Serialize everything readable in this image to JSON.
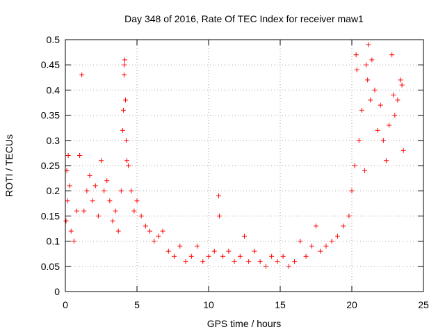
{
  "chart_data": {
    "type": "scatter",
    "title": "Day 348 of 2016, Rate Of TEC Index for receiver maw1",
    "xlabel": "GPS time / hours",
    "ylabel": "ROTI / TECUs",
    "xlim": [
      0,
      25
    ],
    "ylim": [
      0,
      0.5
    ],
    "xticks": [
      0,
      5,
      10,
      15,
      20,
      25
    ],
    "xtick_labels": [
      "0",
      "5",
      "10",
      "15",
      "20",
      "25"
    ],
    "yticks": [
      0,
      0.05,
      0.1,
      0.15,
      0.2,
      0.25,
      0.3,
      0.35,
      0.4,
      0.45,
      0.5
    ],
    "ytick_labels": [
      "0",
      "0.05",
      "0.1",
      "0.15",
      "0.2",
      "0.25",
      "0.3",
      "0.35",
      "0.4",
      "0.45",
      "0.5"
    ],
    "grid": true,
    "marker": "+",
    "color": "#ff0000",
    "series": [
      {
        "name": "ROTI",
        "points": [
          [
            0.1,
            0.24
          ],
          [
            0.2,
            0.27
          ],
          [
            0.3,
            0.21
          ],
          [
            0.15,
            0.18
          ],
          [
            0.05,
            0.14
          ],
          [
            0.4,
            0.12
          ],
          [
            0.6,
            0.1
          ],
          [
            0.8,
            0.16
          ],
          [
            1.0,
            0.27
          ],
          [
            1.15,
            0.43
          ],
          [
            1.3,
            0.16
          ],
          [
            1.5,
            0.2
          ],
          [
            1.7,
            0.23
          ],
          [
            1.9,
            0.18
          ],
          [
            2.1,
            0.21
          ],
          [
            2.3,
            0.15
          ],
          [
            2.5,
            0.26
          ],
          [
            2.7,
            0.2
          ],
          [
            2.9,
            0.22
          ],
          [
            3.1,
            0.18
          ],
          [
            3.3,
            0.14
          ],
          [
            3.5,
            0.16
          ],
          [
            3.7,
            0.12
          ],
          [
            3.9,
            0.2
          ],
          [
            4.0,
            0.32
          ],
          [
            4.05,
            0.36
          ],
          [
            4.1,
            0.43
          ],
          [
            4.12,
            0.45
          ],
          [
            4.15,
            0.46
          ],
          [
            4.2,
            0.38
          ],
          [
            4.25,
            0.3
          ],
          [
            4.3,
            0.26
          ],
          [
            4.4,
            0.25
          ],
          [
            4.6,
            0.2
          ],
          [
            4.8,
            0.16
          ],
          [
            5.0,
            0.18
          ],
          [
            5.3,
            0.15
          ],
          [
            5.6,
            0.13
          ],
          [
            5.9,
            0.12
          ],
          [
            6.2,
            0.1
          ],
          [
            6.5,
            0.11
          ],
          [
            6.8,
            0.12
          ],
          [
            7.2,
            0.08
          ],
          [
            7.6,
            0.07
          ],
          [
            8.0,
            0.09
          ],
          [
            8.4,
            0.06
          ],
          [
            8.8,
            0.07
          ],
          [
            9.2,
            0.09
          ],
          [
            9.6,
            0.06
          ],
          [
            10.0,
            0.07
          ],
          [
            10.4,
            0.08
          ],
          [
            10.7,
            0.19
          ],
          [
            10.75,
            0.15
          ],
          [
            11.0,
            0.07
          ],
          [
            11.4,
            0.08
          ],
          [
            11.8,
            0.06
          ],
          [
            12.2,
            0.07
          ],
          [
            12.5,
            0.11
          ],
          [
            12.8,
            0.06
          ],
          [
            13.2,
            0.08
          ],
          [
            13.6,
            0.06
          ],
          [
            14.0,
            0.05
          ],
          [
            14.4,
            0.07
          ],
          [
            14.8,
            0.06
          ],
          [
            15.2,
            0.07
          ],
          [
            15.6,
            0.05
          ],
          [
            16.0,
            0.06
          ],
          [
            16.4,
            0.1
          ],
          [
            16.8,
            0.07
          ],
          [
            17.2,
            0.09
          ],
          [
            17.5,
            0.13
          ],
          [
            17.8,
            0.08
          ],
          [
            18.2,
            0.09
          ],
          [
            18.6,
            0.1
          ],
          [
            19.0,
            0.11
          ],
          [
            19.4,
            0.13
          ],
          [
            19.8,
            0.15
          ],
          [
            20.0,
            0.2
          ],
          [
            20.2,
            0.25
          ],
          [
            20.3,
            0.47
          ],
          [
            20.35,
            0.44
          ],
          [
            20.5,
            0.3
          ],
          [
            20.7,
            0.36
          ],
          [
            20.9,
            0.24
          ],
          [
            21.0,
            0.45
          ],
          [
            21.1,
            0.42
          ],
          [
            21.15,
            0.49
          ],
          [
            21.3,
            0.38
          ],
          [
            21.4,
            0.46
          ],
          [
            21.6,
            0.4
          ],
          [
            21.8,
            0.32
          ],
          [
            22.0,
            0.37
          ],
          [
            22.2,
            0.3
          ],
          [
            22.4,
            0.26
          ],
          [
            22.6,
            0.33
          ],
          [
            22.8,
            0.47
          ],
          [
            22.9,
            0.39
          ],
          [
            23.0,
            0.35
          ],
          [
            23.2,
            0.38
          ],
          [
            23.4,
            0.42
          ],
          [
            23.5,
            0.41
          ],
          [
            23.6,
            0.28
          ]
        ]
      }
    ]
  }
}
